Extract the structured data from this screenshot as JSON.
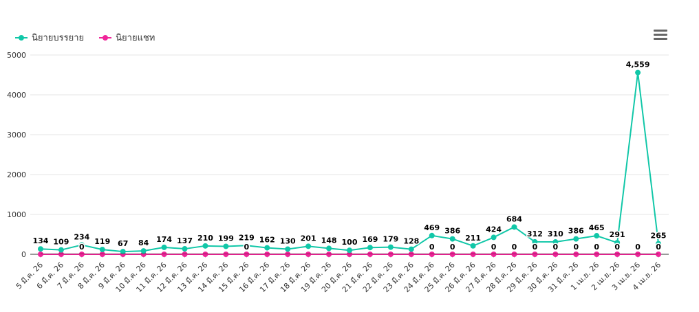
{
  "legend": [
    {
      "label": "นิยายบรรยาย",
      "color": "#11C7A8"
    },
    {
      "label": "นิยายแชท",
      "color": "#F0259A"
    }
  ],
  "menu_icon": "hamburger-menu-icon",
  "chart_data": {
    "type": "line",
    "x": [
      "5 มี.ค. 26",
      "6 มี.ค. 26",
      "7 มี.ค. 26",
      "8 มี.ค. 26",
      "9 มี.ค. 26",
      "10 มี.ค. 26",
      "11 มี.ค. 26",
      "12 มี.ค. 26",
      "13 มี.ค. 26",
      "14 มี.ค. 26",
      "15 มี.ค. 26",
      "16 มี.ค. 26",
      "17 มี.ค. 26",
      "18 มี.ค. 26",
      "19 มี.ค. 26",
      "20 มี.ค. 26",
      "21 มี.ค. 26",
      "22 มี.ค. 26",
      "23 มี.ค. 26",
      "24 มี.ค. 26",
      "25 มี.ค. 26",
      "26 มี.ค. 26",
      "27 มี.ค. 26",
      "28 มี.ค. 26",
      "29 มี.ค. 26",
      "30 มี.ค. 26",
      "31 มี.ค. 26",
      "1 เม.ย. 26",
      "2 เม.ย. 26",
      "3 เม.ย. 26",
      "4 เม.ย. 26"
    ],
    "series": [
      {
        "name": "นิยายบรรยาย",
        "color": "#11C7A8",
        "values": [
          134,
          109,
          234,
          119,
          67,
          84,
          174,
          137,
          210,
          199,
          219,
          162,
          130,
          201,
          148,
          100,
          169,
          179,
          128,
          469,
          386,
          211,
          424,
          684,
          312,
          310,
          386,
          465,
          291,
          4559,
          265
        ],
        "labels": [
          "134",
          "109",
          "234",
          "119",
          "67",
          "84",
          "174",
          "137",
          "210",
          "199",
          "219",
          "162",
          "130",
          "201",
          "148",
          "100",
          "169",
          "179",
          "128",
          "469",
          "386",
          "211",
          "424",
          "684",
          "312",
          "310",
          "386",
          "465",
          "291",
          "4,559",
          "265"
        ]
      },
      {
        "name": "นิยายแชท",
        "color": "#F0259A",
        "values": [
          0,
          0,
          0,
          0,
          0,
          0,
          0,
          0,
          0,
          0,
          0,
          0,
          0,
          0,
          0,
          0,
          0,
          0,
          0,
          0,
          0,
          0,
          0,
          0,
          0,
          0,
          0,
          0,
          0,
          0,
          0
        ],
        "labels": [
          null,
          null,
          "0",
          null,
          null,
          null,
          null,
          null,
          null,
          null,
          "0",
          null,
          null,
          null,
          null,
          null,
          null,
          null,
          null,
          "0",
          "0",
          null,
          "0",
          "0",
          "0",
          "0",
          "0",
          "0",
          "0",
          "0",
          "0"
        ]
      }
    ],
    "y_ticks": [
      "0",
      "1000",
      "2000",
      "3000",
      "4000",
      "5000"
    ],
    "ylim": [
      0,
      5000
    ],
    "grid": true,
    "legend_position": "top-left"
  }
}
